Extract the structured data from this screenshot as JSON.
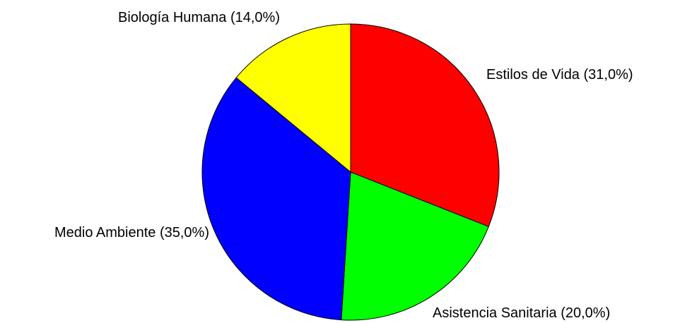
{
  "chart_data": {
    "type": "pie",
    "start_angle_deg": 0,
    "direction": "clockwise",
    "slices": [
      {
        "name": "Estilos de Vida",
        "value": 31.0,
        "label": "Estilos de Vida (31,0%)",
        "color": "#ff0000"
      },
      {
        "name": "Asistencia Sanitaria",
        "value": 20.0,
        "label": "Asistencia Sanitaria (20,0%)",
        "color": "#00ff00"
      },
      {
        "name": "Medio Ambiente",
        "value": 35.0,
        "label": "Medio Ambiente (35,0%)",
        "color": "#0000ff"
      },
      {
        "name": "Biología Humana",
        "value": 14.0,
        "label": "Biología Humana (14,0%)",
        "color": "#ffff00"
      }
    ]
  }
}
